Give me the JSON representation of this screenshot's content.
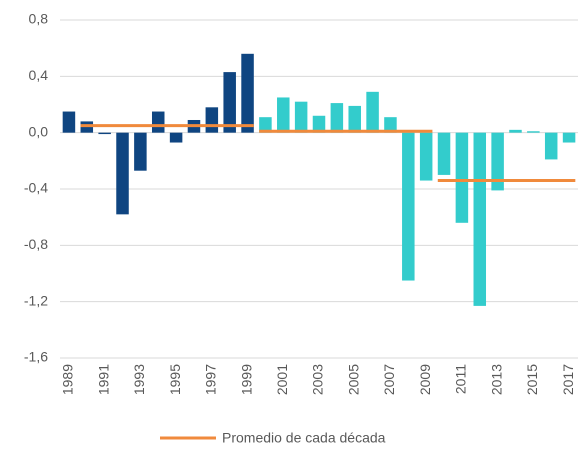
{
  "chart_data": {
    "type": "bar",
    "categories": [
      "1989",
      null,
      "1991",
      null,
      "1993",
      null,
      "1995",
      null,
      "1997",
      null,
      "1999",
      null,
      "2001",
      null,
      "2003",
      null,
      "2005",
      null,
      "2007",
      null,
      "2009",
      null,
      "2011",
      null,
      "2013",
      null,
      "2015",
      null,
      "2017"
    ],
    "values": [
      0.15,
      0.08,
      -0.01,
      -0.58,
      -0.27,
      0.15,
      -0.07,
      0.09,
      0.18,
      0.43,
      0.56,
      0.11,
      0.25,
      0.22,
      0.12,
      0.21,
      0.19,
      0.29,
      0.11,
      -1.05,
      -0.34,
      -0.3,
      -0.64,
      -1.23,
      -0.41,
      0.02,
      0.01,
      -0.19,
      -0.07
    ],
    "colors": [
      "#0f4581",
      "#0f4581",
      "#0f4581",
      "#0f4581",
      "#0f4581",
      "#0f4581",
      "#0f4581",
      "#0f4581",
      "#0f4581",
      "#0f4581",
      "#0f4581",
      "#33cccc",
      "#33cccc",
      "#33cccc",
      "#33cccc",
      "#33cccc",
      "#33cccc",
      "#33cccc",
      "#33cccc",
      "#33cccc",
      "#33cccc",
      "#33cccc",
      "#33cccc",
      "#33cccc",
      "#33cccc",
      "#33cccc",
      "#33cccc",
      "#33cccc",
      "#33cccc"
    ],
    "series": [
      {
        "name": "Promedio de cada década",
        "color": "#f08a3c",
        "values": [
          null,
          0.05,
          0.05,
          0.05,
          0.05,
          0.05,
          0.05,
          0.05,
          0.05,
          0.05,
          0.05,
          0.01,
          0.01,
          0.01,
          0.01,
          0.01,
          0.01,
          0.01,
          0.01,
          0.01,
          0.01,
          -0.34,
          -0.34,
          -0.34,
          -0.34,
          -0.34,
          -0.34,
          -0.34,
          -0.34
        ]
      }
    ],
    "ylim": [
      -1.6,
      0.8
    ],
    "yticks": [
      {
        "value": -1.6,
        "label": "-1,6"
      },
      {
        "value": -1.2,
        "label": "-1,2"
      },
      {
        "value": -0.8,
        "label": "-0,8"
      },
      {
        "value": -0.4,
        "label": "-0,4"
      },
      {
        "value": 0,
        "label": "0,0"
      },
      {
        "value": 0.4,
        "label": "0,4"
      },
      {
        "value": 0.8,
        "label": "0,8"
      }
    ],
    "grid": true,
    "legend": "bottom"
  }
}
